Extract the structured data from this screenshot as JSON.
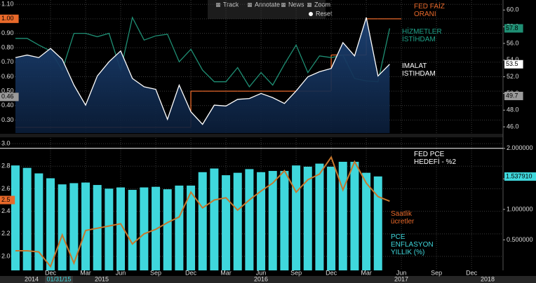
{
  "chart_data": [
    {
      "type": "line",
      "toolbar": [
        "Track",
        "Annotate",
        "News",
        "Zoom",
        "Reset"
      ],
      "ylim": [
        0.21,
        1.13
      ],
      "yticks": [
        {
          "value": 0.3,
          "label": "0.30"
        },
        {
          "value": 0.4,
          "label": "0.40"
        },
        {
          "value": 0.5,
          "label": "0.50"
        },
        {
          "value": 0.6,
          "label": "0.60"
        },
        {
          "value": 0.7,
          "label": "0.70"
        },
        {
          "value": 0.8,
          "label": "0.80"
        },
        {
          "value": 0.9,
          "label": "0.90"
        },
        {
          "value": 1.0,
          "label": "1.00"
        },
        {
          "value": 1.1,
          "label": "1.10"
        }
      ],
      "y2lim": [
        45.25,
        61.2
      ],
      "y2ticks": [
        {
          "value": 46,
          "label": "46.0"
        },
        {
          "value": 48,
          "label": "48.0"
        },
        {
          "value": 50,
          "label": "50.0"
        },
        {
          "value": 52,
          "label": "52.0"
        },
        {
          "value": 54,
          "label": "54.0"
        },
        {
          "value": 56,
          "label": "56.0"
        },
        {
          "value": 58,
          "label": "58.0"
        },
        {
          "value": 60,
          "label": "60.0"
        }
      ],
      "grid": true,
      "series": [
        {
          "name": "FED FAİZ\nORANI",
          "color": "#e8692a",
          "axis": "y",
          "draw": "step",
          "values": [
            0.25,
            0.25,
            0.25,
            0.25,
            0.25,
            0.25,
            0.25,
            0.25,
            0.25,
            0.25,
            0.25,
            0.25,
            0.25,
            0.25,
            0.25,
            0.5,
            0.5,
            0.5,
            0.5,
            0.5,
            0.5,
            0.5,
            0.5,
            0.5,
            0.5,
            0.5,
            0.5,
            0.75,
            0.75,
            0.75,
            1.0,
            1.0,
            1.0,
            null,
            null,
            null,
            null,
            null,
            null,
            null,
            null,
            null,
            null
          ]
        },
        {
          "name": "HİZMETLER\nİSTİHDAM",
          "color": "#1f8f74",
          "axis": "y2",
          "draw": "line",
          "values": [
            56.6,
            56.6,
            55.8,
            55.1,
            52.8,
            57.2,
            57.2,
            56.8,
            57.2,
            52.8,
            59.1,
            56.4,
            56.9,
            57.1,
            53.8,
            55.3,
            52.8,
            51.4,
            51.4,
            53.1,
            50.8,
            52.5,
            51.0,
            53.5,
            55.8,
            52.5,
            54.5,
            54.3,
            54.6,
            51.8,
            51.5,
            51.4,
            57.8,
            null,
            null,
            null,
            null,
            null,
            null,
            null,
            null,
            null,
            null
          ]
        },
        {
          "name": "IMALAT\nISTIHDAM",
          "color": "#ffffff",
          "axis": "y2",
          "draw": "area",
          "values": [
            54.3,
            54.6,
            54.3,
            55.4,
            54.1,
            51.0,
            48.6,
            52.1,
            53.8,
            55.1,
            51.8,
            50.8,
            50.5,
            46.9,
            51.0,
            47.8,
            46.3,
            48.6,
            48.5,
            49.3,
            49.4,
            50.0,
            49.5,
            48.8,
            50.3,
            52.0,
            52.6,
            53.0,
            56.1,
            54.5,
            59.1,
            52.1,
            53.5,
            null,
            null,
            null,
            null,
            null,
            null,
            null,
            null,
            null,
            null
          ]
        }
      ],
      "tags": [
        {
          "value": 1.0,
          "label": "1.00",
          "axis": "y",
          "color": "#e8692a"
        },
        {
          "value": 0.46,
          "label": "0.46",
          "axis": "y",
          "color": "#9a9a9a"
        },
        {
          "value": 57.8,
          "label": "57.8",
          "axis": "y2",
          "color": "#1f8f74"
        },
        {
          "value": 53.5,
          "label": "53.5",
          "axis": "y2",
          "color": "#ffffff"
        },
        {
          "value": 49.7,
          "label": "49.7",
          "axis": "y2",
          "color": "#9a9a9a"
        }
      ]
    },
    {
      "type": "bar",
      "categories": [
        null,
        null,
        null,
        "Dec",
        null,
        null,
        "Mar",
        null,
        null,
        "Jun",
        null,
        null,
        "Sep",
        null,
        null,
        "Dec",
        null,
        null,
        "Mar",
        null,
        null,
        "Jun",
        null,
        null,
        "Sep",
        null,
        null,
        "Dec",
        null,
        null,
        "Mar",
        null,
        null,
        "Jun",
        null,
        null,
        "Sep",
        null,
        null,
        "Dec",
        null,
        null,
        null
      ],
      "year_labels": [
        "2014",
        "2015",
        "2016",
        "2017",
        "2018"
      ],
      "cursor_label": "01/31/15",
      "ylim": [
        1.876,
        3.05
      ],
      "yticks": [
        {
          "value": 2.0,
          "label": "2.0"
        },
        {
          "value": 2.2,
          "label": "2.2"
        },
        {
          "value": 2.4,
          "label": "2.4"
        },
        {
          "value": 2.6,
          "label": "2.6"
        },
        {
          "value": 2.8,
          "label": "2.8"
        },
        {
          "value": 3.0,
          "label": "3.0"
        }
      ],
      "y2lim": [
        0,
        2.17
      ],
      "y2ticks": [
        {
          "value": 0.5,
          "label": "0.500000"
        },
        {
          "value": 1.0,
          "label": "1.000000"
        },
        {
          "value": 1.5,
          "label": "1.500000"
        },
        {
          "value": 2.0,
          "label": "2.000000"
        }
      ],
      "grid": true,
      "series": [
        {
          "name": "PCE\nENFLASYON\nYILLIK (%)",
          "color": "#3fd7dc",
          "axis": "y2",
          "draw": "bar",
          "values": [
            1.72,
            1.68,
            1.59,
            1.51,
            1.41,
            1.43,
            1.44,
            1.4,
            1.34,
            1.36,
            1.32,
            1.36,
            1.37,
            1.33,
            1.39,
            1.39,
            1.61,
            1.67,
            1.56,
            1.6,
            1.66,
            1.61,
            1.63,
            1.63,
            1.72,
            1.7,
            1.75,
            1.7,
            1.78,
            1.78,
            1.6,
            1.54,
            null,
            null,
            null,
            null,
            null,
            null,
            null,
            null,
            null,
            null,
            null
          ]
        },
        {
          "name": "Saatlik\nücretler",
          "color": "#c8772c",
          "axis": "y",
          "draw": "line",
          "values": [
            2.05,
            2.05,
            2.04,
            1.91,
            2.19,
            1.94,
            2.23,
            2.25,
            2.27,
            2.29,
            2.11,
            2.2,
            2.24,
            2.3,
            2.35,
            2.57,
            2.43,
            2.5,
            2.52,
            2.41,
            2.5,
            2.58,
            2.65,
            2.76,
            2.57,
            2.68,
            2.73,
            2.88,
            2.59,
            2.84,
            2.65,
            2.53,
            2.49,
            null,
            null,
            null,
            null,
            null,
            null,
            null,
            null,
            null,
            null
          ]
        },
        {
          "name": "FED PCE\nHEDEFİ - %2",
          "color": "#ffffff",
          "axis": "y2",
          "draw": "level",
          "level": 2
        }
      ],
      "tags": [
        {
          "value": 2.5,
          "label": "2.5",
          "axis": "y",
          "color": "#e8692a"
        },
        {
          "value": 1.53791,
          "label": "1.537910",
          "axis": "y2",
          "color": "#3fd7dc"
        }
      ]
    }
  ]
}
